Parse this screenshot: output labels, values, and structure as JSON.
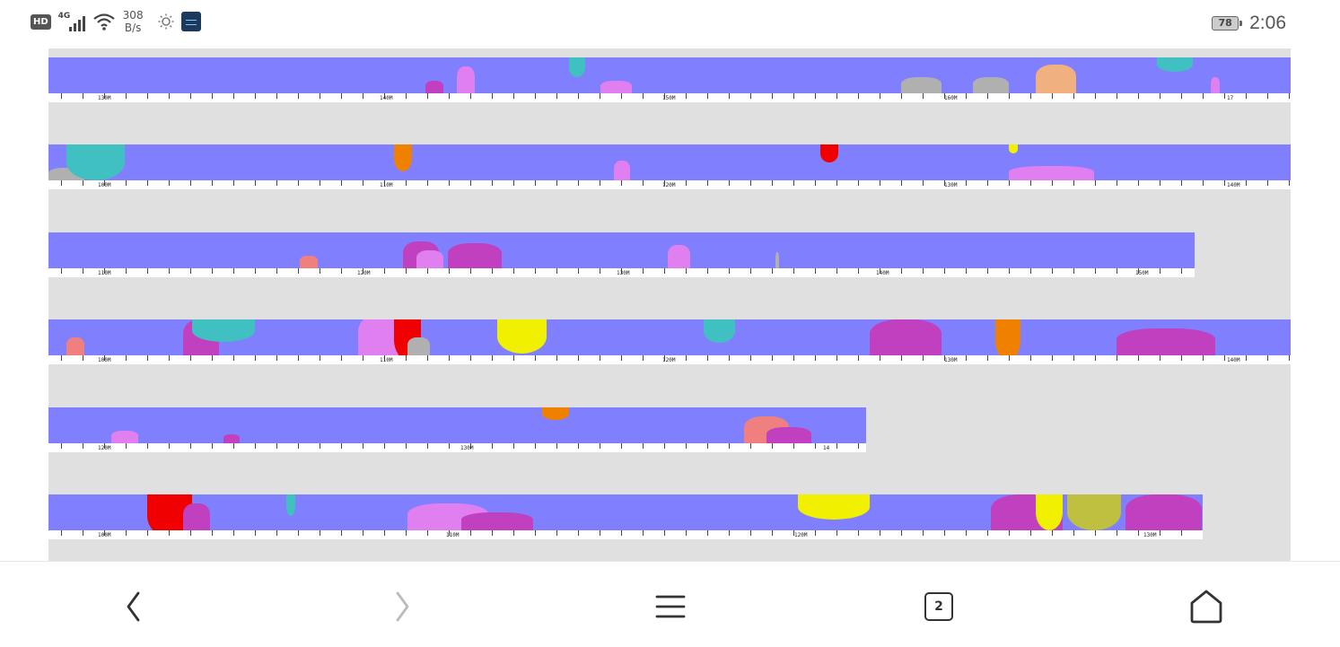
{
  "status_bar": {
    "hd_badge": "HD",
    "network_type": "4G",
    "net_speed_value": "308",
    "net_speed_unit": "B/s",
    "battery_level": "78",
    "time": "2:06"
  },
  "tracks": [
    {
      "width_ratio": 1.0,
      "labels": [
        "130M",
        "140M",
        "150M",
        "160M",
        "17"
      ]
    },
    {
      "width_ratio": 1.0,
      "labels": [
        "100M",
        "110M",
        "120M",
        "130M",
        "140M"
      ]
    },
    {
      "width_ratio": 0.923,
      "labels": [
        "110M",
        "120M",
        "130M",
        "140M",
        "150M"
      ]
    },
    {
      "width_ratio": 1.0,
      "labels": [
        "100M",
        "110M",
        "120M",
        "130M",
        "140M"
      ]
    },
    {
      "width_ratio": 0.658,
      "labels": [
        "120M",
        "130M",
        "14"
      ]
    },
    {
      "width_ratio": 0.929,
      "labels": [
        "100M",
        "110M",
        "120M",
        "130M"
      ]
    }
  ],
  "nav_bar": {
    "back_icon": "chevron-left-icon",
    "forward_icon": "chevron-right-icon",
    "menu_icon": "hamburger-menu-icon",
    "tabs_count": "2",
    "home_icon": "home-icon"
  },
  "colors": {
    "band": "#8080ff",
    "background": "#e0e0e0",
    "magenta": "#c040c0",
    "pink": "#e080f0",
    "teal": "#40c0c0",
    "yellow": "#f0f000",
    "orange": "#f08000",
    "red": "#f00000",
    "salmon": "#f08080",
    "gray": "#b0b0b0",
    "peach": "#f0b080",
    "olive": "#c0c040"
  }
}
